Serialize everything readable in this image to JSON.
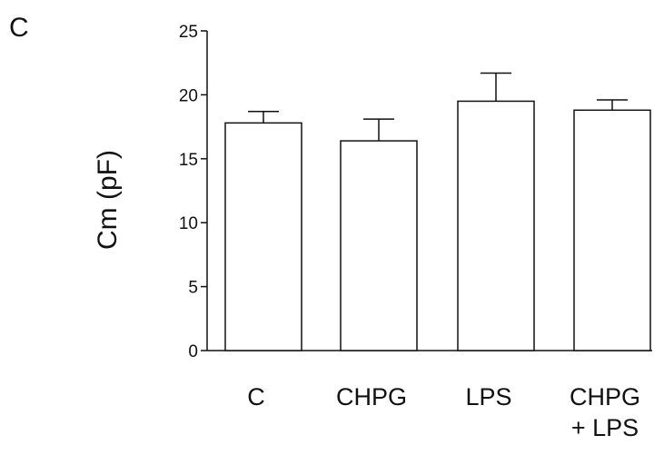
{
  "panel_label": "C",
  "chart_data": {
    "type": "bar",
    "title": "",
    "xlabel": "",
    "ylabel": "Cm (pF)",
    "ylim": [
      0,
      25
    ],
    "yticks": [
      0,
      5,
      10,
      15,
      20,
      25
    ],
    "categories": [
      [
        "C"
      ],
      [
        "CHPG"
      ],
      [
        "LPS"
      ],
      [
        "CHPG",
        "+ LPS"
      ]
    ],
    "values": [
      17.8,
      16.4,
      19.5,
      18.8
    ],
    "errors": [
      0.9,
      1.7,
      2.2,
      0.8
    ],
    "bar_fill": "#ffffff",
    "bar_stroke": "#111111",
    "grid": false,
    "legend": "none"
  }
}
